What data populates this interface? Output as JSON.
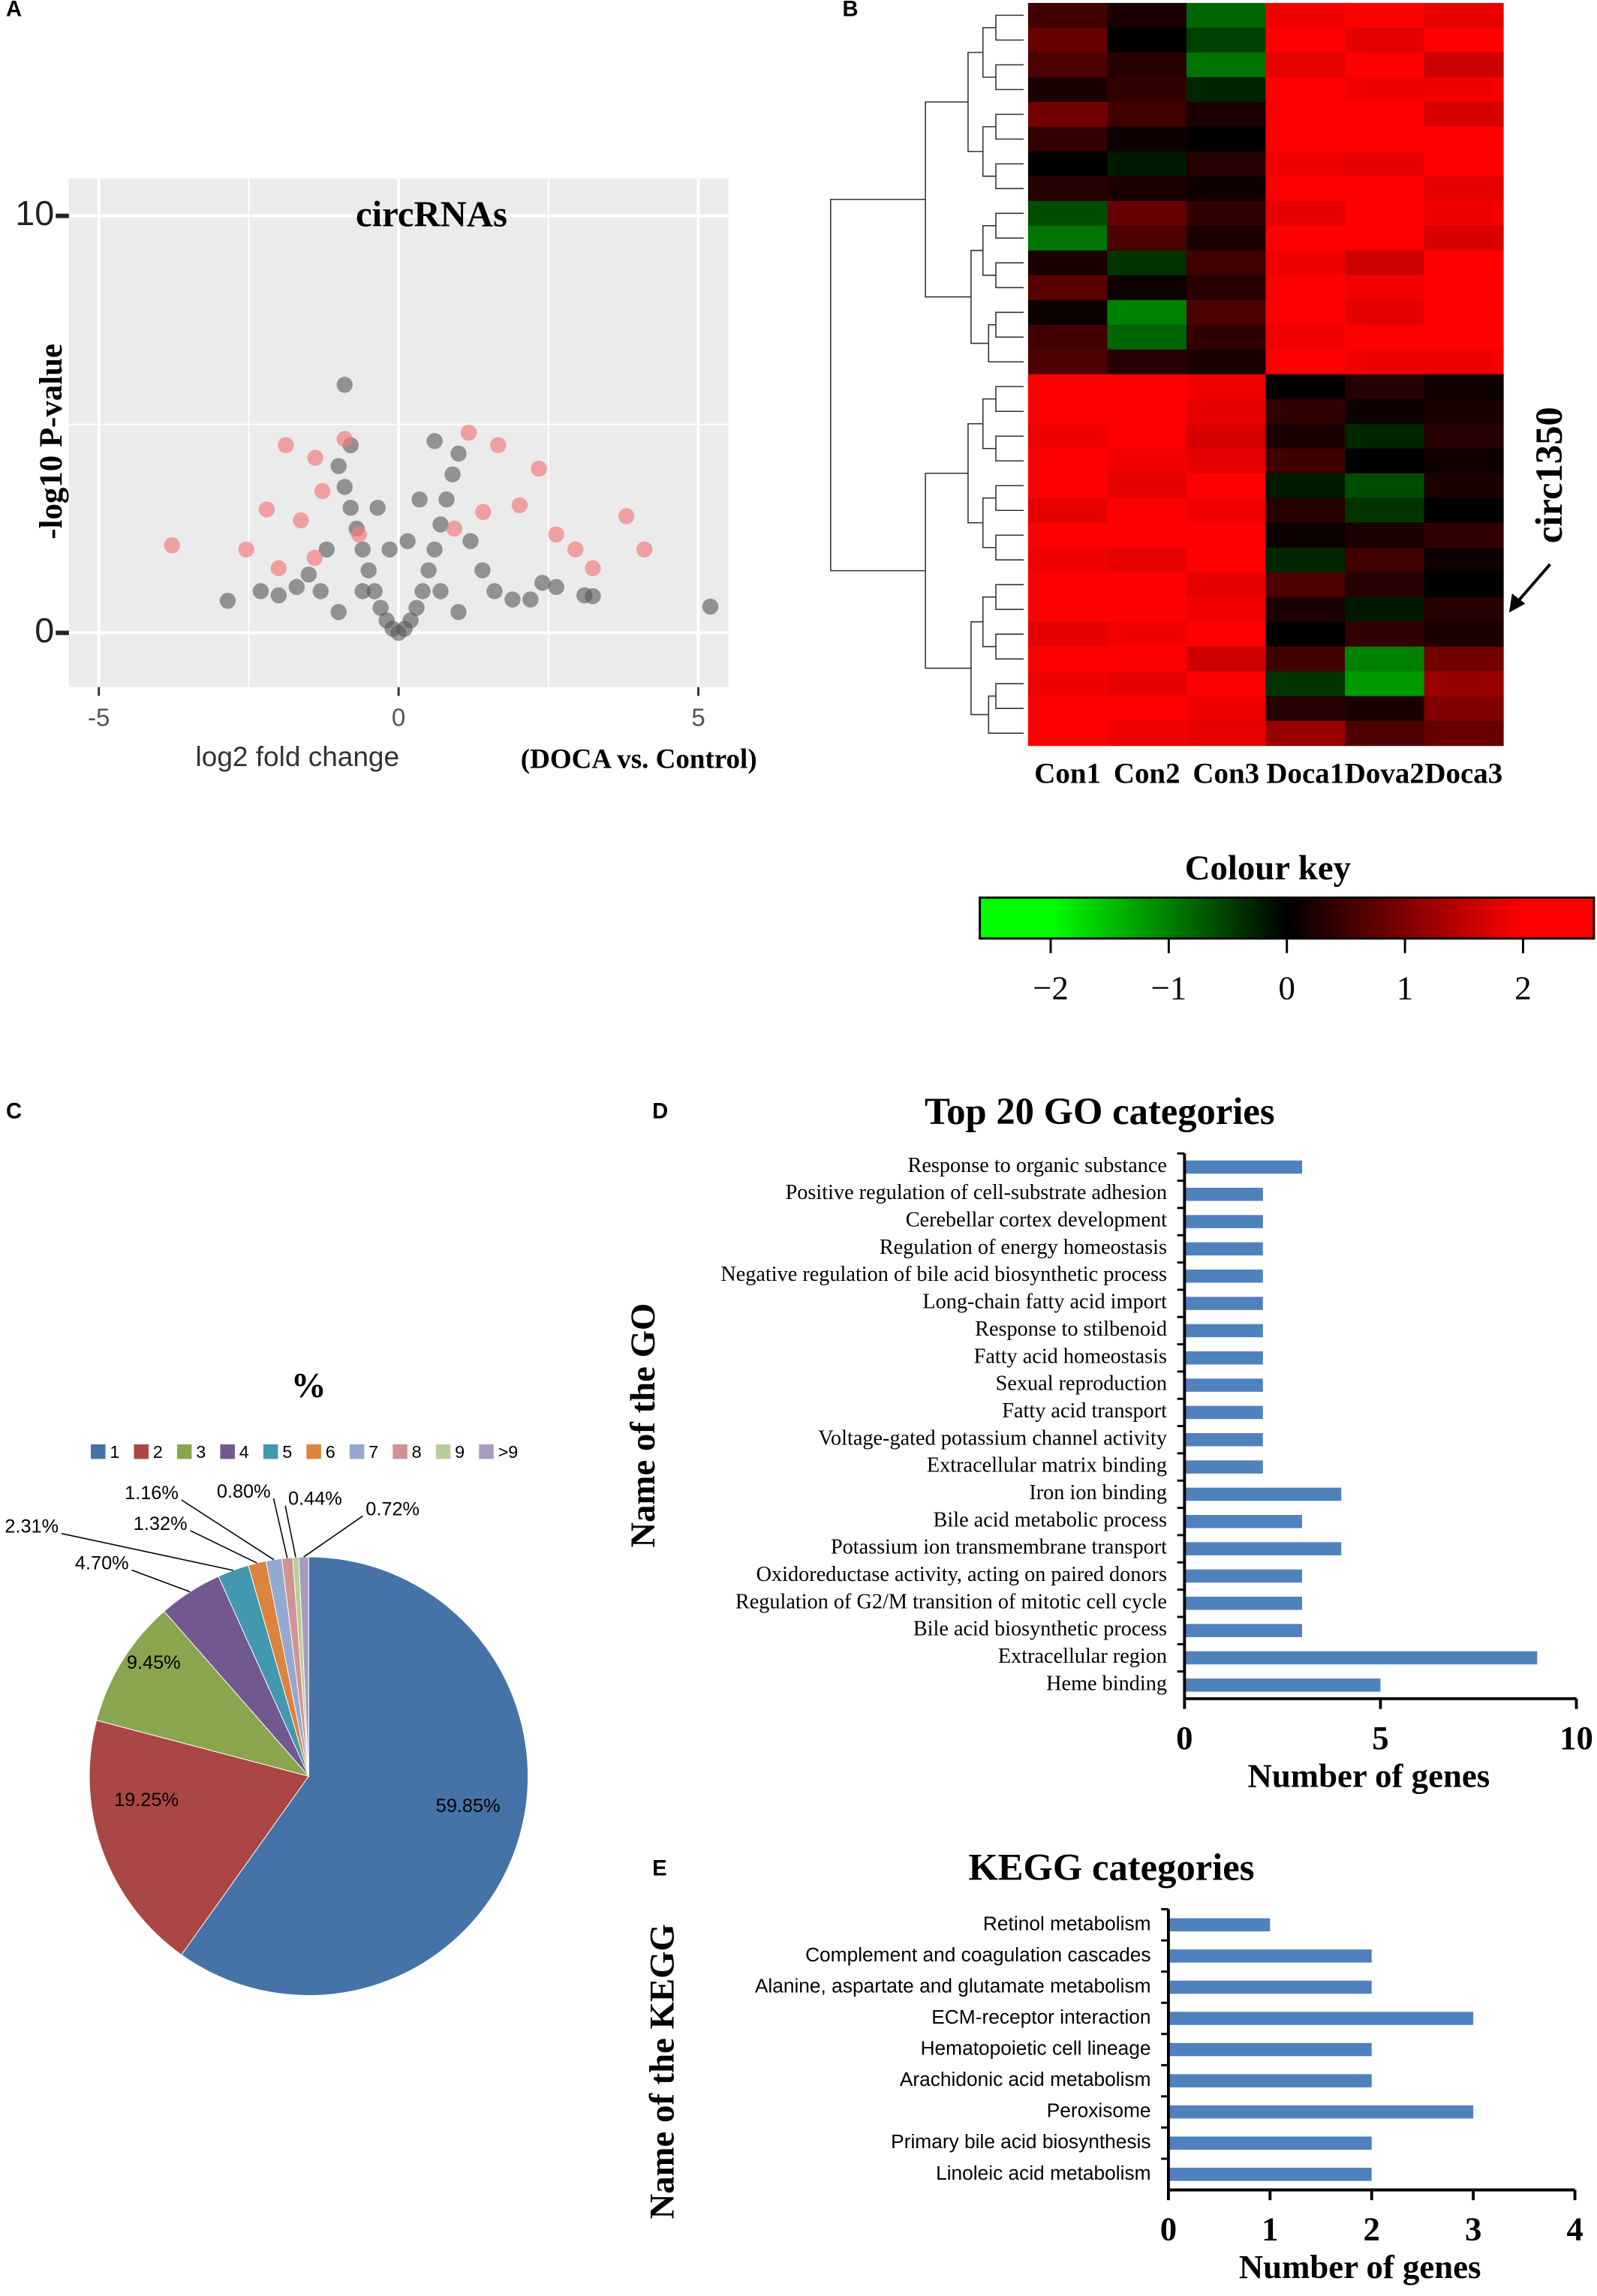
{
  "chart_data": [
    {
      "panel": "A",
      "type": "scatter",
      "title": "circRNAs",
      "xlabel": "log2 fold change",
      "xlabel_note": "(DOCA vs. Control)",
      "ylabel": "-log10 P-value",
      "xlim": [
        -5.5,
        5.5
      ],
      "ylim": [
        -1.3,
        10.9
      ],
      "xticks": [
        -5,
        0,
        5
      ],
      "yticks": [
        0,
        10
      ],
      "grid": true,
      "series": [
        {
          "color": "#555555",
          "x": [
            -0.9,
            -2.85,
            5.2,
            3.24,
            3.1,
            2.63,
            2.4,
            2.2,
            -2.3,
            -2.0,
            -1.7,
            -1.5,
            -1.3,
            -1.2,
            -1.0,
            -0.9,
            -0.8,
            -0.7,
            -0.6,
            -0.5,
            -0.4,
            -0.3,
            -0.2,
            -0.1,
            0,
            0.1,
            0.2,
            0.3,
            0.4,
            0.5,
            0.6,
            0.7,
            0.8,
            0.9,
            1.0,
            1.2,
            1.4,
            1.6,
            1.9,
            -0.8,
            0.6,
            -0.35,
            0.35,
            -0.6,
            0.7,
            -1.0,
            1.0,
            -0.15,
            0.15
          ],
          "values": [
            5.95,
            0.77,
            0.63,
            0.88,
            0.9,
            1.1,
            1.2,
            0.8,
            1.0,
            0.9,
            1.1,
            1.4,
            1.0,
            2.0,
            4.0,
            3.5,
            3.0,
            2.5,
            2.0,
            1.5,
            1.0,
            0.6,
            0.3,
            0.1,
            0,
            0.1,
            0.3,
            0.6,
            1.0,
            1.5,
            2.0,
            2.6,
            3.2,
            3.8,
            4.3,
            2.2,
            1.5,
            1.0,
            0.8,
            4.5,
            4.6,
            3.0,
            3.2,
            1.0,
            1.0,
            0.5,
            0.5,
            2.0,
            2.2
          ]
        },
        {
          "color": "#f08080",
          "x": [
            -1.88,
            -1.39,
            -2.2,
            -2.54,
            -3.78,
            -2.0,
            -1.63,
            -1.27,
            -0.9,
            -0.66,
            1.17,
            1.66,
            2.34,
            2.02,
            2.63,
            3.24,
            3.8,
            4.1,
            1.41,
            0.93,
            2.95,
            -1.4
          ],
          "values": [
            4.5,
            4.2,
            2.96,
            2.0,
            2.1,
            1.55,
            2.7,
            3.4,
            4.65,
            2.36,
            4.8,
            4.5,
            3.94,
            3.06,
            2.36,
            1.55,
            2.8,
            2.0,
            2.9,
            2.5,
            2.0,
            1.8
          ]
        }
      ]
    },
    {
      "panel": "B",
      "type": "heatmap",
      "categories": [
        "Con1",
        "Con2",
        "Con3",
        "Doca1",
        "Dova2",
        "Doca3"
      ],
      "colors": [
        "#00ff00",
        "#000000",
        "#ff0000"
      ],
      "annotation": "circ1350",
      "colour_key": {
        "title": "Colour key",
        "lim": [
          -2.6,
          2.6
        ],
        "ticks": [
          {
            "value": -2,
            "label": "−2"
          },
          {
            "value": -1,
            "label": "−1"
          },
          0,
          1,
          2
        ]
      },
      "values": [
        [
          0.5,
          0.2,
          -0.8,
          1.9,
          2.1,
          1.8
        ],
        [
          0.8,
          0.0,
          -0.5,
          2.0,
          1.8,
          2.1
        ],
        [
          0.6,
          0.3,
          -0.9,
          1.8,
          2.2,
          1.6
        ],
        [
          0.2,
          0.4,
          -0.3,
          2.2,
          1.9,
          1.9
        ],
        [
          0.9,
          0.5,
          0.2,
          2.3,
          2.0,
          1.7
        ],
        [
          0.4,
          0.1,
          0.0,
          2.1,
          2.2,
          2.0
        ],
        [
          0.0,
          -0.2,
          0.3,
          1.9,
          1.8,
          2.2
        ],
        [
          0.3,
          0.2,
          0.1,
          2.0,
          2.1,
          1.8
        ],
        [
          -0.6,
          0.8,
          0.4,
          1.8,
          2.3,
          1.9
        ],
        [
          -0.9,
          0.6,
          0.2,
          2.1,
          2.0,
          1.7
        ],
        [
          0.2,
          -0.4,
          0.5,
          1.9,
          1.6,
          2.0
        ],
        [
          0.7,
          0.1,
          0.3,
          2.2,
          1.9,
          2.1
        ],
        [
          0.1,
          -1.0,
          0.6,
          2.0,
          1.8,
          2.2
        ],
        [
          0.5,
          -0.8,
          0.4,
          1.9,
          2.1,
          2.3
        ],
        [
          0.6,
          0.3,
          0.2,
          2.0,
          1.9,
          1.9
        ],
        [
          2.1,
          2.0,
          1.9,
          0.0,
          0.3,
          0.1
        ],
        [
          2.0,
          2.2,
          1.8,
          0.4,
          0.1,
          0.2
        ],
        [
          1.9,
          2.1,
          1.7,
          0.2,
          -0.3,
          0.3
        ],
        [
          2.2,
          1.9,
          1.8,
          0.5,
          0.0,
          0.1
        ],
        [
          2.0,
          1.8,
          2.1,
          -0.2,
          -0.6,
          0.2
        ],
        [
          1.8,
          2.0,
          1.9,
          0.3,
          -0.4,
          0.0
        ],
        [
          2.1,
          2.2,
          2.0,
          0.1,
          0.2,
          0.4
        ],
        [
          1.9,
          1.8,
          2.2,
          -0.3,
          0.5,
          0.1
        ],
        [
          2.0,
          2.1,
          1.8,
          0.6,
          0.3,
          0.0
        ],
        [
          2.2,
          2.3,
          1.9,
          0.2,
          -0.2,
          0.3
        ],
        [
          1.8,
          1.9,
          2.1,
          0.0,
          0.4,
          0.2
        ],
        [
          2.0,
          2.1,
          1.6,
          0.5,
          -1.0,
          0.9
        ],
        [
          1.9,
          1.8,
          2.0,
          -0.4,
          -1.2,
          1.2
        ],
        [
          2.1,
          2.0,
          1.9,
          0.3,
          0.2,
          1.0
        ],
        [
          2.0,
          1.9,
          1.8,
          1.2,
          0.6,
          0.8
        ]
      ]
    },
    {
      "panel": "C",
      "type": "pie",
      "title": "%",
      "categories": [
        "1",
        "2",
        "3",
        "4",
        "5",
        "6",
        "7",
        "8",
        "9",
        ">9"
      ],
      "values": [
        59.85,
        19.25,
        9.45,
        4.7,
        2.31,
        1.32,
        1.16,
        0.8,
        0.44,
        0.72
      ],
      "value_labels": [
        "59.85%",
        "19.25%",
        "9.45%",
        "4.70%",
        "2.31%",
        "1.32%",
        "1.16%",
        "0.80%",
        "0.44%",
        "0.72%"
      ],
      "colors": [
        "#4572a7",
        "#aa4643",
        "#89a54e",
        "#71588f",
        "#4198af",
        "#db843d",
        "#93a9cf",
        "#d19392",
        "#b9cd96",
        "#a99bbd"
      ]
    },
    {
      "panel": "D",
      "type": "barh",
      "title": "Top 20 GO categories",
      "xlabel": "Number of genes",
      "ylabel": "Name of the GO",
      "color": "#4f81bd",
      "categories": [
        "Response to organic substance",
        "Positive regulation of cell-substrate adhesion",
        "Cerebellar cortex development",
        "Regulation of energy homeostasis",
        "Negative regulation of bile acid biosynthetic process",
        "Long-chain fatty acid import",
        "Response to stilbenoid",
        "Fatty acid homeostasis",
        "Sexual reproduction",
        "Fatty acid transport",
        "Voltage-gated potassium channel activity",
        "Extracellular matrix binding",
        "Iron ion binding",
        "Bile acid metabolic process",
        "Potassium ion transmembrane transport",
        "Oxidoreductase activity, acting on paired donors",
        "Regulation of G2/M transition of mitotic cell cycle",
        "Bile acid biosynthetic process",
        "Extracellular region",
        "Heme binding"
      ],
      "values": [
        3,
        2,
        2,
        2,
        2,
        2,
        2,
        2,
        2,
        2,
        2,
        2,
        4,
        3,
        4,
        3,
        3,
        3,
        9,
        5
      ],
      "xlim": [
        0,
        10
      ],
      "xticks": [
        0,
        5,
        10
      ]
    },
    {
      "panel": "E",
      "type": "barh",
      "title": "KEGG categories",
      "xlabel": "Number of genes",
      "ylabel": "Name of the KEGG",
      "color": "#4f81bd",
      "categories": [
        "Retinol metabolism",
        "Complement and coagulation cascades",
        "Alanine, aspartate and glutamate metabolism",
        "ECM-receptor interaction",
        "Hematopoietic cell lineage",
        "Arachidonic acid metabolism",
        "Peroxisome",
        "Primary bile acid biosynthesis",
        "Linoleic acid metabolism"
      ],
      "values": [
        1,
        2,
        2,
        3,
        2,
        2,
        3,
        2,
        2
      ],
      "xlim": [
        0,
        4
      ],
      "xticks": [
        0,
        1,
        2,
        3,
        4
      ]
    }
  ]
}
